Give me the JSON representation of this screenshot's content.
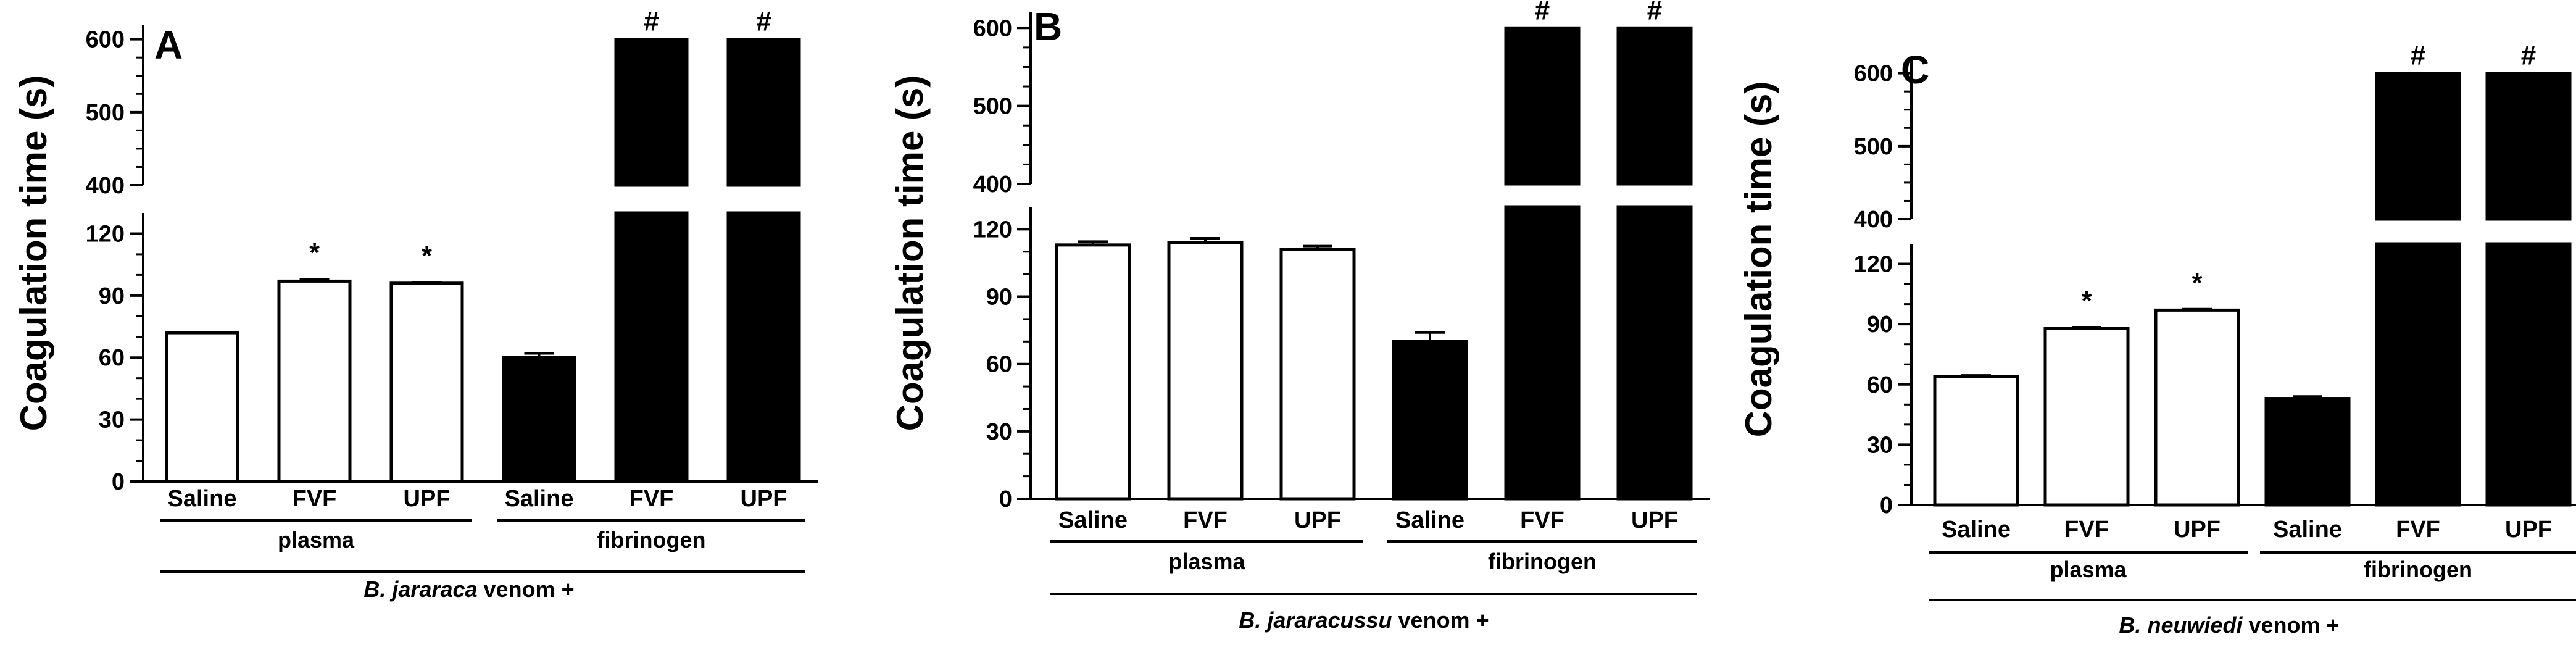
{
  "chart_data": [
    {
      "type": "bar",
      "panel": "A",
      "ylabel": "Coagulation time (s)",
      "categories": [
        "Saline",
        "FVF",
        "UPF",
        "Saline",
        "FVF",
        "UPF"
      ],
      "groups": [
        "plasma",
        "plasma",
        "plasma",
        "fibrinogen",
        "fibrinogen",
        "fibrinogen"
      ],
      "group_labels": [
        "plasma",
        "fibrinogen"
      ],
      "values": [
        72,
        97,
        96,
        60,
        600,
        600
      ],
      "errors": [
        0,
        1,
        0.5,
        2,
        0,
        0
      ],
      "fill": [
        "#ffffff",
        "#ffffff",
        "#ffffff",
        "#000000",
        "#000000",
        "#000000"
      ],
      "marks": [
        "",
        "*",
        "*",
        "",
        "#",
        "#"
      ],
      "caption_italic": "B. jararaca",
      "caption_rest": " venom +",
      "y_lower_range": [
        0,
        130
      ],
      "y_upper_range": [
        400,
        620
      ],
      "y_lower_ticks": [
        "0",
        "30",
        "60",
        "90",
        "120"
      ],
      "y_upper_ticks": [
        "400",
        "500",
        "600"
      ]
    },
    {
      "type": "bar",
      "panel": "B",
      "ylabel": "Coagulation time (s)",
      "categories": [
        "Saline",
        "FVF",
        "UPF",
        "Saline",
        "FVF",
        "UPF"
      ],
      "groups": [
        "plasma",
        "plasma",
        "plasma",
        "fibrinogen",
        "fibrinogen",
        "fibrinogen"
      ],
      "group_labels": [
        "plasma",
        "fibrinogen"
      ],
      "values": [
        113,
        114,
        111,
        70,
        600,
        600
      ],
      "errors": [
        1.5,
        2,
        1.5,
        4,
        0,
        0
      ],
      "fill": [
        "#ffffff",
        "#ffffff",
        "#ffffff",
        "#000000",
        "#000000",
        "#000000"
      ],
      "marks": [
        "",
        "",
        "",
        "",
        "#",
        "#"
      ],
      "caption_italic": "B. jararacussu",
      "caption_rest": " venom +",
      "y_lower_range": [
        0,
        130
      ],
      "y_upper_range": [
        400,
        620
      ],
      "y_lower_ticks": [
        "0",
        "30",
        "60",
        "90",
        "120"
      ],
      "y_upper_ticks": [
        "400",
        "500",
        "600"
      ]
    },
    {
      "type": "bar",
      "panel": "C",
      "ylabel": "Coagulation time (s)",
      "categories": [
        "Saline",
        "FVF",
        "UPF",
        "Saline",
        "FVF",
        "UPF"
      ],
      "groups": [
        "plasma",
        "plasma",
        "plasma",
        "fibrinogen",
        "fibrinogen",
        "fibrinogen"
      ],
      "group_labels": [
        "plasma",
        "fibrinogen"
      ],
      "values": [
        64,
        88,
        97,
        53,
        600,
        600
      ],
      "errors": [
        0.5,
        0.5,
        0.5,
        1,
        0,
        0
      ],
      "fill": [
        "#ffffff",
        "#ffffff",
        "#ffffff",
        "#000000",
        "#000000",
        "#000000"
      ],
      "marks": [
        "",
        "*",
        "*",
        "",
        "#",
        "#"
      ],
      "caption_italic": "B. neuwiedi",
      "caption_rest": " venom +",
      "y_lower_range": [
        0,
        130
      ],
      "y_upper_range": [
        400,
        620
      ],
      "y_lower_ticks": [
        "0",
        "30",
        "60",
        "90",
        "120"
      ],
      "y_upper_ticks": [
        "400",
        "500",
        "600"
      ]
    }
  ]
}
